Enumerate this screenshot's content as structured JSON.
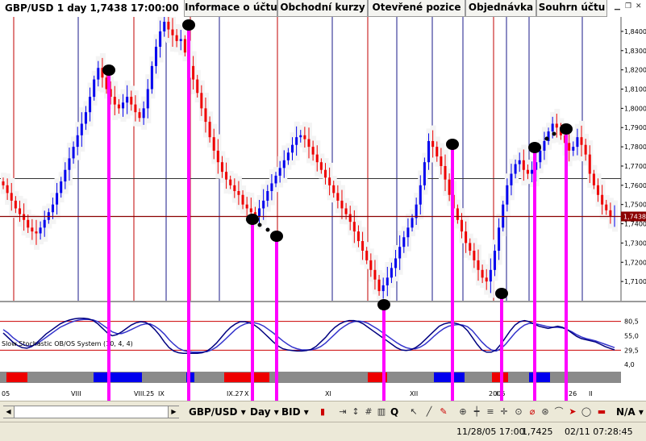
{
  "header": {
    "title": "GBP/USD 1 day 1,7438 17:00:00",
    "tabs": [
      {
        "label": "Informace o účtu"
      },
      {
        "label": "Obchodní kurzy"
      },
      {
        "label": "Otevřené pozice"
      },
      {
        "label": "Objednávka"
      },
      {
        "label": "Souhrn účtu"
      }
    ]
  },
  "price_chart": {
    "axis_labels": [
      "1,8400",
      "1,8300",
      "1,8200",
      "1,8100",
      "1,8000",
      "1,7900",
      "1,7800",
      "1,7700",
      "1,7600",
      "1,7500",
      "1,7400",
      "1,7300",
      "1,7200",
      "1,7100"
    ],
    "current_price": "1,7438",
    "colors": {
      "up": "#0000ee",
      "down": "#ee0000",
      "marker": "#000000",
      "annotation": "#ff00ff",
      "current_line": "#8b0000"
    }
  },
  "oscillator": {
    "title": "Slow Stochastic OB/OS System (10, 4, 4)",
    "levels": [
      "80,5",
      "55,0",
      "29,5",
      "4,0"
    ],
    "colors": {
      "k": "#000080",
      "d": "#3333cc",
      "level_line": "#cc0000"
    }
  },
  "date_axis": {
    "labels": [
      "05",
      "VIII",
      "VIII.25",
      "IX",
      "IX.27",
      "X",
      "XI",
      "XII",
      "2006",
      "I",
      "26",
      "II"
    ]
  },
  "toolbar": {
    "symbol": "GBP/USD",
    "period": "Day",
    "price_type": "BID",
    "quote_button": "Q",
    "zoom_value": "N/A"
  },
  "status": {
    "cursor_date": "11/28/05 17:00",
    "cursor_price": "1,7425",
    "clock": "02/11 07:28:45"
  },
  "chart_data": {
    "type": "candlestick",
    "title": "GBP/USD 1 day 1,7438 17:00:00",
    "ylim": [
      1.7,
      1.845
    ],
    "x_labels": [
      "05",
      "VIII",
      "VIII.25",
      "IX",
      "IX.27",
      "X",
      "XI",
      "XII",
      "2006",
      "I",
      "26",
      "II"
    ],
    "series": [
      {
        "name": "price",
        "values": [
          1.76,
          1.756,
          1.752,
          1.748,
          1.745,
          1.742,
          1.738,
          1.736,
          1.735,
          1.738,
          1.742,
          1.746,
          1.75,
          1.756,
          1.762,
          1.768,
          1.774,
          1.78,
          1.786,
          1.792,
          1.798,
          1.806,
          1.815,
          1.821,
          1.816,
          1.81,
          1.806,
          1.802,
          1.8,
          1.803,
          1.806,
          1.802,
          1.798,
          1.795,
          1.8,
          1.81,
          1.822,
          1.832,
          1.84,
          1.845,
          1.841,
          1.838,
          1.835,
          1.836,
          1.829,
          1.822,
          1.815,
          1.808,
          1.8,
          1.793,
          1.785,
          1.778,
          1.772,
          1.767,
          1.763,
          1.76,
          1.757,
          1.755,
          1.75,
          1.748,
          1.746,
          1.744,
          1.748,
          1.752,
          1.757,
          1.761,
          1.765,
          1.769,
          1.773,
          1.777,
          1.781,
          1.785,
          1.786,
          1.784,
          1.78,
          1.776,
          1.772,
          1.768,
          1.764,
          1.76,
          1.756,
          1.752,
          1.748,
          1.745,
          1.741,
          1.736,
          1.731,
          1.726,
          1.721,
          1.716,
          1.711,
          1.705,
          1.708,
          1.712,
          1.717,
          1.722,
          1.728,
          1.733,
          1.738,
          1.743,
          1.75,
          1.76,
          1.772,
          1.783,
          1.78,
          1.775,
          1.77,
          1.763,
          1.755,
          1.748,
          1.742,
          1.736,
          1.73,
          1.726,
          1.721,
          1.716,
          1.712,
          1.71,
          1.716,
          1.726,
          1.738,
          1.75,
          1.76,
          1.766,
          1.771,
          1.773,
          1.768,
          1.766,
          1.768,
          1.772,
          1.778,
          1.783,
          1.788,
          1.792,
          1.79,
          1.786,
          1.782,
          1.778,
          1.78,
          1.785,
          1.781,
          1.776,
          1.766,
          1.76,
          1.755,
          1.75,
          1.747,
          1.744,
          1.744
        ]
      },
      {
        "name": "slow-stoch-k",
        "values": [
          60,
          52,
          44,
          38,
          34,
          33,
          36,
          42,
          50,
          58,
          64,
          70,
          76,
          80,
          83,
          85,
          86,
          86,
          85,
          82,
          76,
          68,
          60,
          55,
          57,
          62,
          68,
          74,
          78,
          80,
          79,
          74,
          66,
          56,
          44,
          34,
          28,
          25,
          24,
          24,
          24,
          24,
          25,
          28,
          34,
          42,
          52,
          62,
          70,
          76,
          80,
          80,
          78,
          74,
          68,
          60,
          52,
          44,
          37,
          32,
          30,
          29,
          28,
          28,
          29,
          31,
          36,
          44,
          52,
          62,
          70,
          76,
          80,
          82,
          82,
          80,
          76,
          70,
          64,
          58,
          52,
          46,
          40,
          34,
          30,
          29,
          30,
          34,
          40,
          48,
          56,
          64,
          72,
          76,
          78,
          78,
          76,
          72,
          64,
          52,
          40,
          30,
          26,
          26,
          30,
          40,
          52,
          64,
          74,
          80,
          82,
          80,
          76,
          72,
          70,
          68,
          70,
          72,
          70,
          66,
          60,
          54,
          50,
          48,
          46,
          44,
          40,
          36,
          33,
          30
        ]
      },
      {
        "name": "slow-stoch-d",
        "values": [
          66,
          60,
          52,
          46,
          40,
          37,
          37,
          40,
          46,
          52,
          58,
          64,
          70,
          74,
          78,
          81,
          83,
          84,
          84,
          83,
          80,
          74,
          68,
          62,
          59,
          59,
          62,
          66,
          70,
          74,
          76,
          76,
          72,
          66,
          58,
          48,
          40,
          33,
          29,
          27,
          26,
          26,
          26,
          27,
          30,
          35,
          42,
          50,
          58,
          66,
          72,
          76,
          78,
          78,
          76,
          72,
          66,
          60,
          53,
          46,
          40,
          35,
          32,
          30,
          30,
          30,
          32,
          36,
          42,
          50,
          58,
          66,
          72,
          77,
          80,
          81,
          80,
          77,
          72,
          67,
          61,
          55,
          49,
          43,
          38,
          34,
          32,
          32,
          35,
          40,
          47,
          55,
          62,
          68,
          72,
          74,
          75,
          74,
          71,
          64,
          54,
          44,
          36,
          30,
          28,
          32,
          40,
          50,
          60,
          68,
          74,
          77,
          77,
          75,
          73,
          71,
          70,
          70,
          69,
          66,
          62,
          57,
          53,
          50,
          48,
          46,
          43,
          40,
          37,
          34
        ]
      }
    ],
    "oscillator_levels": [
      80.5,
      55.0,
      29.5,
      4.0
    ],
    "current_price": 1.7438
  }
}
